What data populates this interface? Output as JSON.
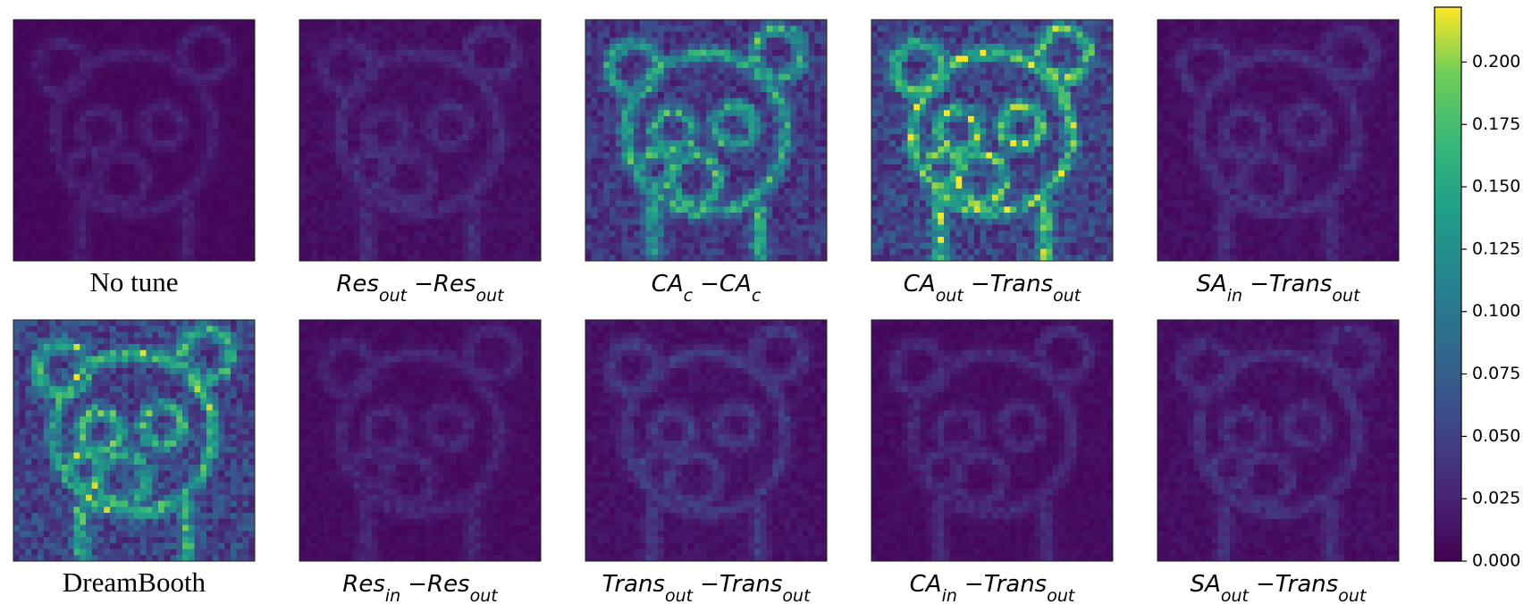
{
  "chart_data": {
    "type": "heatmap-grid",
    "colormap": "viridis",
    "panels": [
      {
        "label": [
          {
            "text": "No tune"
          }
        ],
        "background": 0.005,
        "peak": 0.03
      },
      {
        "label": [
          {
            "text": "Res",
            "sub": "out"
          },
          {
            "text": "−"
          },
          {
            "text": "Res",
            "sub": "out"
          }
        ],
        "background": 0.01,
        "peak": 0.04
      },
      {
        "label": [
          {
            "text": "CA",
            "sub": "c"
          },
          {
            "text": "−"
          },
          {
            "text": "CA",
            "sub": "c"
          }
        ],
        "background": 0.04,
        "peak": 0.19
      },
      {
        "label": [
          {
            "text": "CA",
            "sub": "out"
          },
          {
            "text": "−"
          },
          {
            "text": "Trans",
            "sub": "out"
          }
        ],
        "background": 0.05,
        "peak": 0.22
      },
      {
        "label": [
          {
            "text": "SA",
            "sub": "in"
          },
          {
            "text": "−"
          },
          {
            "text": "Trans",
            "sub": "out"
          }
        ],
        "background": 0.01,
        "peak": 0.045
      },
      {
        "label": [
          {
            "text": "DreamBooth"
          }
        ],
        "background": 0.05,
        "peak": 0.2
      },
      {
        "label": [
          {
            "text": "Res",
            "sub": "in"
          },
          {
            "text": "−"
          },
          {
            "text": "Res",
            "sub": "out"
          }
        ],
        "background": 0.008,
        "peak": 0.035
      },
      {
        "label": [
          {
            "text": "Trans",
            "sub": "out"
          },
          {
            "text": "−"
          },
          {
            "text": "Trans",
            "sub": "out"
          }
        ],
        "background": 0.012,
        "peak": 0.055
      },
      {
        "label": [
          {
            "text": "CA",
            "sub": "in"
          },
          {
            "text": "−"
          },
          {
            "text": "Trans",
            "sub": "out"
          }
        ],
        "background": 0.008,
        "peak": 0.04
      },
      {
        "label": [
          {
            "text": "SA",
            "sub": "out"
          },
          {
            "text": "−"
          },
          {
            "text": "Trans",
            "sub": "out"
          }
        ],
        "background": 0.01,
        "peak": 0.045
      }
    ],
    "colorbar": {
      "ylim": [
        0,
        0.222
      ],
      "yticks": [
        {
          "value": 0,
          "label": "0.000"
        },
        {
          "value": 0.025,
          "label": "0.025"
        },
        {
          "value": 0.05,
          "label": "0.050"
        },
        {
          "value": 0.075,
          "label": "0.075"
        },
        {
          "value": 0.1,
          "label": "0.100"
        },
        {
          "value": 0.125,
          "label": "0.125"
        },
        {
          "value": 0.15,
          "label": "0.150"
        },
        {
          "value": 0.175,
          "label": "0.175"
        },
        {
          "value": 0.2,
          "label": "0.200"
        }
      ]
    }
  }
}
